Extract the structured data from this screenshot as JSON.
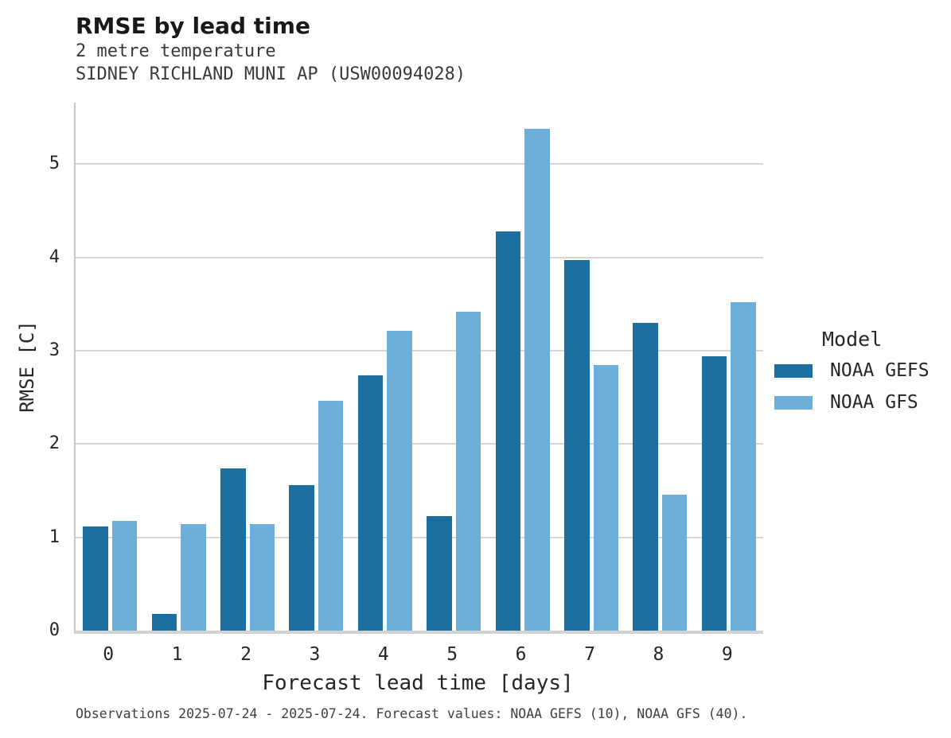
{
  "header": {
    "title": "RMSE by lead time",
    "subtitle": "2 metre temperature",
    "station": "SIDNEY RICHLAND MUNI AP (USW00094028)"
  },
  "chart_data": {
    "type": "bar",
    "categories": [
      "0",
      "1",
      "2",
      "3",
      "4",
      "5",
      "6",
      "7",
      "8",
      "9"
    ],
    "series": [
      {
        "name": "NOAA GEFS",
        "color": "#1B6FA0",
        "values": [
          1.12,
          0.18,
          1.74,
          1.56,
          2.74,
          1.23,
          4.28,
          3.97,
          3.3,
          2.94
        ]
      },
      {
        "name": "NOAA GFS",
        "color": "#6CB0D9",
        "values": [
          1.18,
          1.14,
          1.14,
          2.46,
          3.21,
          3.42,
          5.38,
          2.85,
          1.46,
          3.52
        ]
      }
    ],
    "title": "RMSE by lead time",
    "xlabel": "Forecast lead time [days]",
    "ylabel": "RMSE [C]",
    "ylim": [
      0,
      5.66
    ],
    "yticks": [
      0,
      1,
      2,
      3,
      4,
      5
    ],
    "grid": "horizontal",
    "legend_title": "Model",
    "legend_position": "right"
  },
  "caption": "Observations 2025-07-24 - 2025-07-24. Forecast values: NOAA GEFS (10), NOAA GFS (40)."
}
